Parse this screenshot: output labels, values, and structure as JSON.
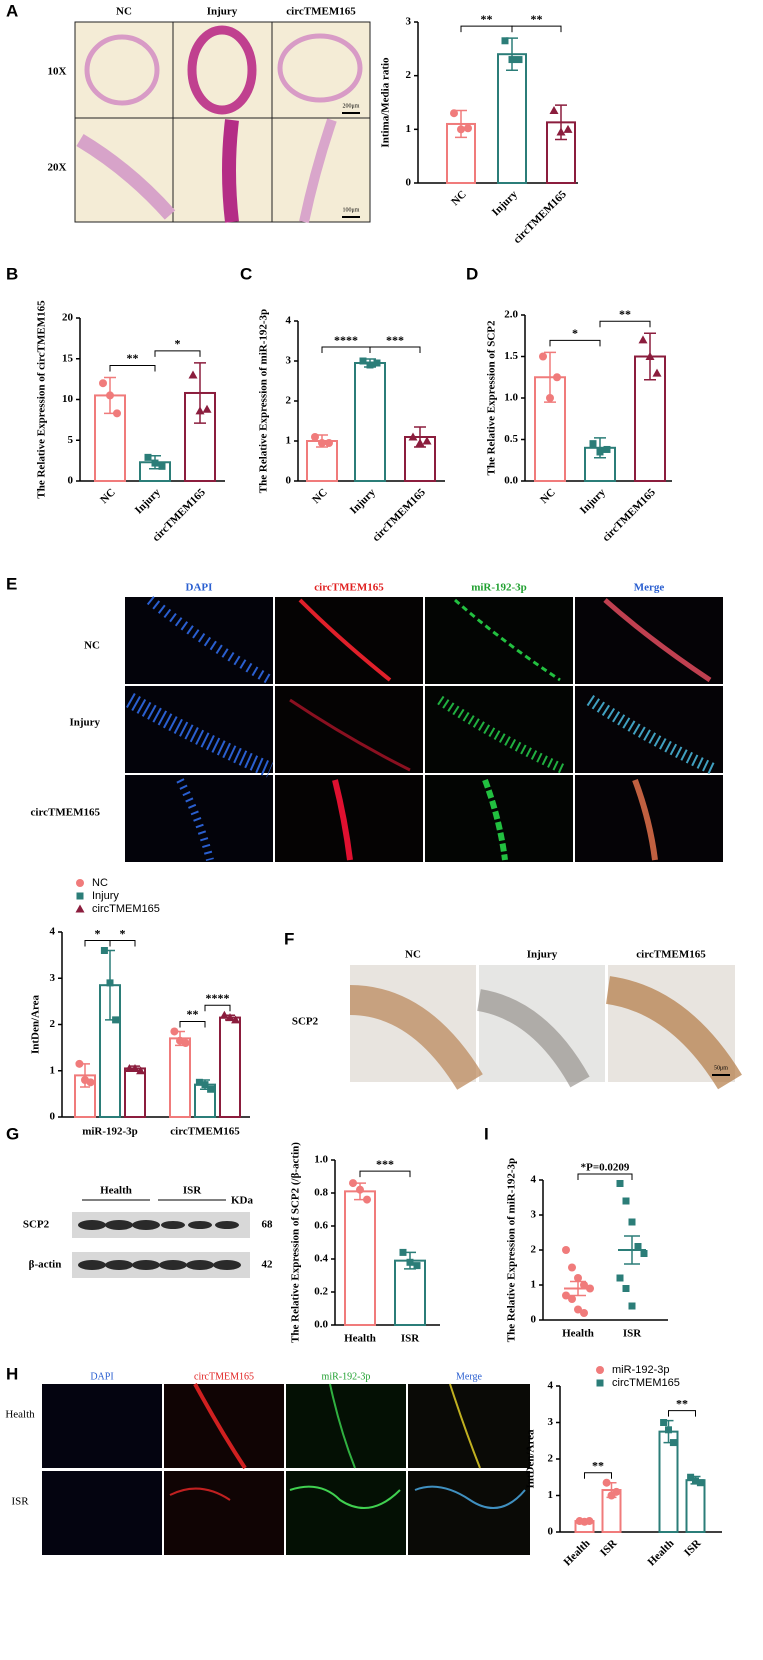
{
  "figure": {
    "panels": [
      "A",
      "B",
      "C",
      "D",
      "E",
      "F",
      "G",
      "I",
      "H"
    ],
    "a_images": {
      "columns": [
        "NC",
        "Injury",
        "circTMEM165"
      ],
      "rows": [
        "10X",
        "20X"
      ],
      "scales": [
        "200μm",
        "100μm"
      ]
    },
    "e_images": {
      "columns": [
        "DAPI",
        "circTMEM165",
        "miR-192-3p",
        "Merge"
      ],
      "rows": [
        "NC",
        "Injury",
        "circTMEM165"
      ]
    },
    "f_images": {
      "columns": [
        "NC",
        "Injury",
        "circTMEM165"
      ],
      "row": "SCP2",
      "scale": "50μm"
    },
    "blot": {
      "groups": [
        "Health",
        "ISR"
      ],
      "unit": "KDa",
      "bands": [
        {
          "name": "SCP2",
          "size": "68"
        },
        {
          "name": "β-actin",
          "size": "42"
        }
      ]
    },
    "h_images": {
      "columns": [
        "DAPI",
        "circTMEM165",
        "miR-192-3p",
        "Merge"
      ],
      "rows": [
        "Health",
        "ISR"
      ]
    }
  },
  "chart_data": [
    {
      "type": "bar",
      "ylabel": "Intima/Media ratio",
      "categories": [
        "NC",
        "Injury",
        "circTMEM165"
      ],
      "values": [
        1.1,
        2.4,
        1.13
      ],
      "errors": [
        0.25,
        0.3,
        0.32
      ],
      "points": [
        [
          1.3,
          1.0,
          1.02
        ],
        [
          2.65,
          2.3,
          2.3
        ],
        [
          1.35,
          0.95,
          1.0
        ]
      ],
      "colors": [
        "#f07b7b",
        "#2b7d78",
        "#8b1d3d"
      ],
      "markers": [
        "circle",
        "square",
        "triangle"
      ],
      "significance": [
        "**",
        "**"
      ],
      "ylim": [
        0,
        3
      ],
      "yticks": [
        0,
        1,
        2,
        3
      ]
    },
    {
      "type": "bar",
      "ylabel": "The Relative Expression of circTMEM165",
      "categories": [
        "NC",
        "Injury",
        "circTMEM165"
      ],
      "values": [
        10.5,
        2.3,
        10.8
      ],
      "errors": [
        2.2,
        0.8,
        3.7
      ],
      "points": [
        [
          12,
          10.5,
          8.3
        ],
        [
          2.9,
          2.2,
          1.8
        ],
        [
          13,
          8.6,
          8.8
        ]
      ],
      "colors": [
        "#f07b7b",
        "#2b7d78",
        "#8b1d3d"
      ],
      "markers": [
        "circle",
        "square",
        "triangle"
      ],
      "significance": [
        "**",
        "*"
      ],
      "ylim": [
        0,
        20
      ],
      "yticks": [
        0,
        5,
        10,
        15,
        20
      ]
    },
    {
      "type": "bar",
      "ylabel": "The Relative Expression of miR-192-3p",
      "categories": [
        "NC",
        "Injury",
        "circTMEM165"
      ],
      "values": [
        1.0,
        2.95,
        1.1
      ],
      "errors": [
        0.15,
        0.1,
        0.25
      ],
      "points": [
        [
          1.1,
          0.95,
          0.95
        ],
        [
          3.0,
          2.9,
          2.95
        ],
        [
          1.1,
          0.95,
          1.0
        ]
      ],
      "colors": [
        "#f07b7b",
        "#2b7d78",
        "#8b1d3d"
      ],
      "markers": [
        "circle",
        "square",
        "triangle"
      ],
      "significance": [
        "****",
        "***"
      ],
      "ylim": [
        0,
        4
      ],
      "yticks": [
        0,
        1,
        2,
        3,
        4
      ]
    },
    {
      "type": "bar",
      "ylabel": "The Relative Expression of SCP2",
      "categories": [
        "NC",
        "Injury",
        "circTMEM165"
      ],
      "values": [
        1.25,
        0.4,
        1.5
      ],
      "errors": [
        0.3,
        0.12,
        0.28
      ],
      "points": [
        [
          1.5,
          1.0,
          1.25
        ],
        [
          0.45,
          0.35,
          0.38
        ],
        [
          1.7,
          1.5,
          1.3
        ]
      ],
      "colors": [
        "#f07b7b",
        "#2b7d78",
        "#8b1d3d"
      ],
      "markers": [
        "circle",
        "square",
        "triangle"
      ],
      "significance": [
        "*",
        "**"
      ],
      "ylim": [
        0,
        2
      ],
      "yticks": [
        {
          "value": 0,
          "label": "0.0"
        },
        {
          "value": 0.5,
          "label": "0.5"
        },
        {
          "value": 1,
          "label": "1.0"
        },
        {
          "value": 1.5,
          "label": "1.5"
        },
        {
          "value": 2,
          "label": "2.0"
        }
      ]
    },
    {
      "type": "grouped_bar",
      "ylabel": "IntDen/Area",
      "categories": [
        "miR-192-3p",
        "circTMEM165"
      ],
      "series": [
        {
          "name": "NC",
          "color": "#f07b7b",
          "marker": "circle",
          "values": [
            0.9,
            1.7
          ],
          "errors": [
            0.25,
            0.15
          ],
          "points": [
            [
              1.15,
              0.8,
              0.75
            ],
            [
              1.85,
              1.65,
              1.6
            ]
          ]
        },
        {
          "name": "Injury",
          "color": "#2b7d78",
          "marker": "square",
          "values": [
            2.85,
            0.7
          ],
          "errors": [
            0.75,
            0.1
          ],
          "points": [
            [
              3.6,
              2.9,
              2.1
            ],
            [
              0.75,
              0.7,
              0.6
            ]
          ]
        },
        {
          "name": "circTMEM165",
          "color": "#8b1d3d",
          "marker": "triangle",
          "values": [
            1.05,
            2.15
          ],
          "errors": [
            0.05,
            0.05
          ],
          "points": [
            [
              1.05,
              1.05,
              1.0
            ],
            [
              2.2,
              2.15,
              2.1
            ]
          ]
        }
      ],
      "significance": [
        "*",
        "*",
        "**",
        "****"
      ],
      "ylim": [
        0,
        4
      ],
      "yticks": [
        0,
        1,
        2,
        3,
        4
      ]
    },
    {
      "type": "bar",
      "ylabel": "The Relative Expression of SCP2 (/β-actin)",
      "categories": [
        "Health",
        "ISR"
      ],
      "values": [
        0.81,
        0.39
      ],
      "errors": [
        0.05,
        0.05
      ],
      "points": [
        [
          0.86,
          0.82,
          0.76
        ],
        [
          0.44,
          0.38,
          0.36
        ]
      ],
      "colors": [
        "#f07b7b",
        "#2b7d78"
      ],
      "markers": [
        "circle",
        "square"
      ],
      "significance": [
        "***"
      ],
      "ylim": [
        0,
        1
      ],
      "yticks": [
        {
          "value": 0,
          "label": "0.0"
        },
        {
          "value": 0.2,
          "label": "0.2"
        },
        {
          "value": 0.4,
          "label": "0.4"
        },
        {
          "value": 0.6,
          "label": "0.6"
        },
        {
          "value": 0.8,
          "label": "0.8"
        },
        {
          "value": 1,
          "label": "1.0"
        }
      ]
    },
    {
      "type": "dot",
      "ylabel": "The Relative Expression of miR-192-3p",
      "categories": [
        "Health",
        "ISR"
      ],
      "means": [
        0.9,
        2.0
      ],
      "errors": [
        0.2,
        0.4
      ],
      "points": [
        [
          2.0,
          1.5,
          1.2,
          1.0,
          0.9,
          0.7,
          0.6,
          0.3,
          0.2
        ],
        [
          3.9,
          3.4,
          2.8,
          2.1,
          1.9,
          1.2,
          0.9,
          0.4
        ]
      ],
      "colors": [
        "#f07b7b",
        "#2b7d78"
      ],
      "markers": [
        "circle",
        "square"
      ],
      "significance": [
        "*P=0.0209"
      ],
      "ylim": [
        0,
        4
      ],
      "yticks": [
        0,
        1,
        2,
        3,
        4
      ]
    },
    {
      "type": "paired_bar",
      "ylabel": "IntDen/Area",
      "categories": [
        "Health",
        "ISR"
      ],
      "series": [
        {
          "name": "miR-192-3p",
          "color": "#f07b7b",
          "marker": "circle",
          "values": [
            0.3,
            1.15
          ],
          "errors": [
            0.03,
            0.2
          ],
          "points": [
            [
              0.3,
              0.28,
              0.3
            ],
            [
              1.35,
              1.0,
              1.1
            ]
          ]
        },
        {
          "name": "circTMEM165",
          "color": "#2b7d78",
          "marker": "square",
          "values": [
            2.75,
            1.42
          ],
          "errors": [
            0.3,
            0.1
          ],
          "points": [
            [
              3.0,
              2.8,
              2.45
            ],
            [
              1.5,
              1.4,
              1.35
            ]
          ]
        }
      ],
      "significance": [
        "**",
        "**"
      ],
      "ylim": [
        0,
        4
      ],
      "yticks": [
        0,
        1,
        2,
        3,
        4
      ]
    }
  ]
}
